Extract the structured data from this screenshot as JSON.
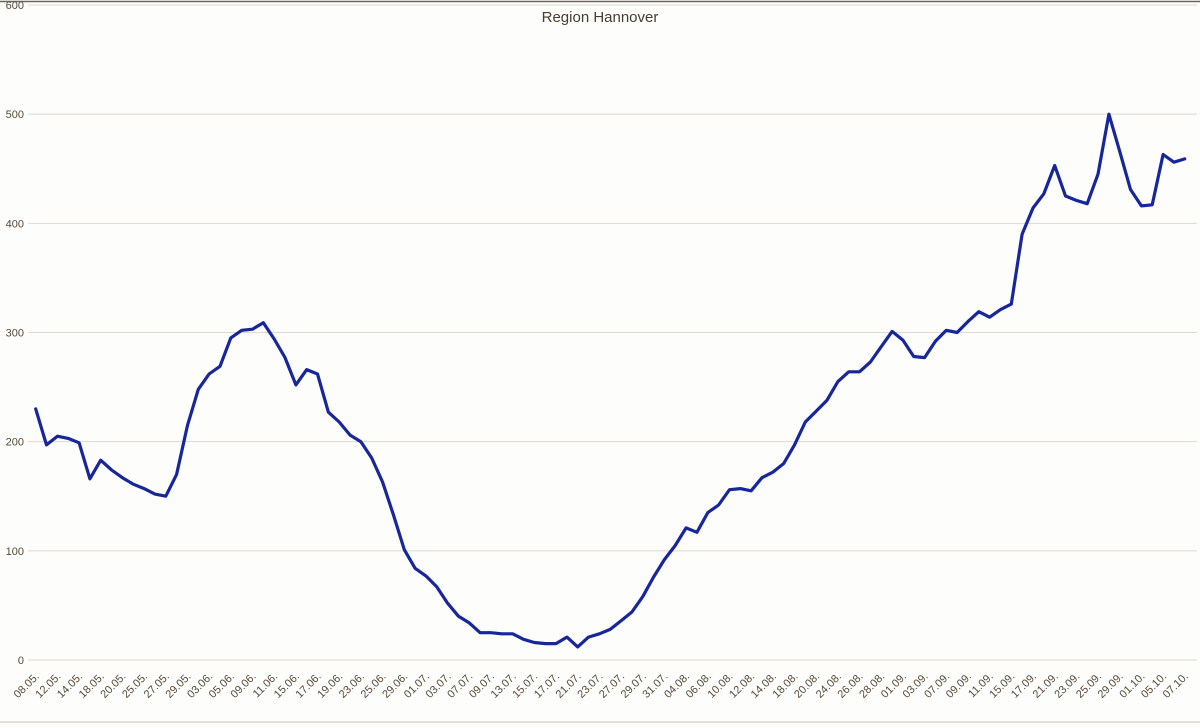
{
  "chart": {
    "title": "Region Hannover"
  },
  "chart_data": {
    "type": "line",
    "title": "Region Hannover",
    "xlabel": "",
    "ylabel": "",
    "ylim": [
      0,
      600
    ],
    "y_ticks": [
      0,
      100,
      200,
      300,
      400,
      500,
      600
    ],
    "grid": true,
    "legend_position": "none",
    "series_name": "Region Hannover",
    "line_color": "#17269b",
    "grid_color": "#dcd9d2",
    "text_color": "#57493a",
    "label_step": 2,
    "x_labels": [
      "08.05.",
      "12.05.",
      "14.05.",
      "18.05.",
      "20.05.",
      "25.05.",
      "27.05.",
      "29.05.",
      "03.06.",
      "05.06.",
      "09.06.",
      "11.06.",
      "15.06.",
      "17.06.",
      "19.06.",
      "23.06.",
      "25.06.",
      "29.06.",
      "01.07.",
      "03.07.",
      "07.07.",
      "09.07.",
      "13.07.",
      "15.07.",
      "17.07.",
      "21.07.",
      "23.07.",
      "27.07.",
      "29.07.",
      "31.07.",
      "04.08.",
      "06.08.",
      "10.08.",
      "12.08.",
      "14.08.",
      "18.08.",
      "20.08.",
      "24.08.",
      "26.08.",
      "28.08.",
      "01.09.",
      "03.09.",
      "07.09.",
      "09.09.",
      "11.09.",
      "15.09.",
      "17.09.",
      "21.09.",
      "23.09.",
      "25.09.",
      "29.09.",
      "01.10.",
      "05.10.",
      "07.10."
    ],
    "values": [
      230,
      197,
      205,
      203,
      199,
      166,
      183,
      174,
      167,
      161,
      157,
      152,
      150,
      170,
      215,
      248,
      262,
      269,
      295,
      302,
      303,
      309,
      294,
      277,
      252,
      266,
      262,
      227,
      218,
      206,
      200,
      185,
      163,
      133,
      101,
      84,
      77,
      67,
      52,
      40,
      34,
      25,
      25,
      24,
      24,
      19,
      16,
      15,
      15,
      21,
      12,
      21,
      24,
      28,
      36,
      44,
      58,
      76,
      92,
      105,
      121,
      117,
      135,
      142,
      156,
      157,
      155,
      167,
      172,
      180,
      197,
      218,
      228,
      238,
      255,
      264,
      264,
      273,
      287,
      301,
      293,
      278,
      277,
      292,
      302,
      300,
      310,
      319,
      314,
      321,
      326,
      390,
      414,
      427,
      453,
      425,
      421,
      418,
      445,
      500,
      466,
      431,
      416,
      417,
      463,
      456,
      459
    ]
  }
}
